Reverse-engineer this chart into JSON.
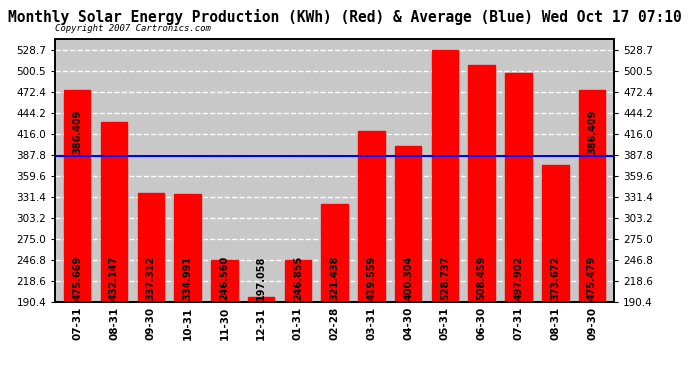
{
  "title": "Monthly Solar Energy Production (KWh) (Red) & Average (Blue) Wed Oct 17 07:10",
  "copyright": "Copyright 2007 Cartronics.com",
  "categories": [
    "07-31",
    "08-31",
    "09-30",
    "10-31",
    "11-30",
    "12-31",
    "01-31",
    "02-28",
    "03-31",
    "04-30",
    "05-31",
    "06-30",
    "07-31",
    "08-31",
    "09-30"
  ],
  "values": [
    475.669,
    432.147,
    337.312,
    334.991,
    246.56,
    197.058,
    246.855,
    321.438,
    419.559,
    400.304,
    528.737,
    508.459,
    497.902,
    373.672,
    475.479
  ],
  "average": 386.409,
  "bar_color": "#ff0000",
  "avg_line_color": "#0000ff",
  "avg_label": "386.409",
  "yticks": [
    190.4,
    218.6,
    246.8,
    275.0,
    303.2,
    331.4,
    359.6,
    387.8,
    416.0,
    444.2,
    472.4,
    500.5,
    528.7
  ],
  "ymin": 190.4,
  "ymax": 543.0,
  "background_color": "#ffffff",
  "plot_bg_color": "#c8c8c8",
  "title_fontsize": 10.5,
  "bar_label_fontsize": 7,
  "axis_fontsize": 7.5
}
